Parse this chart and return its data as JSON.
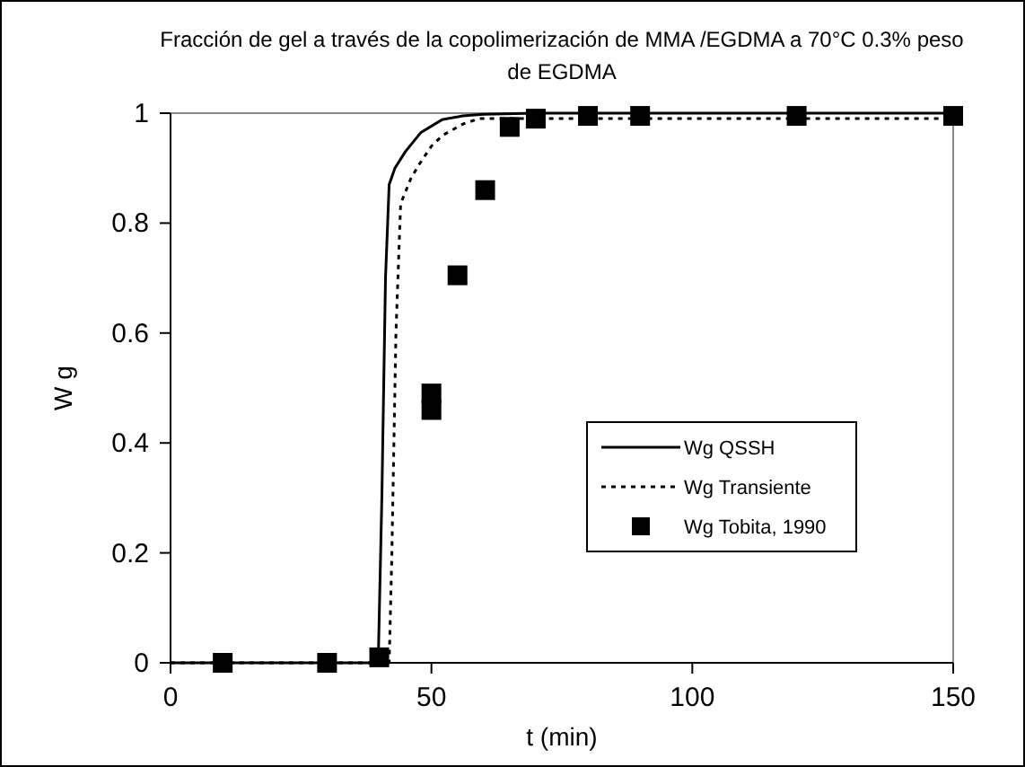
{
  "chart_data": {
    "type": "line",
    "title": "Fracción de gel  a través de la copolimerización de MMA /EGDMA a 70°C 0.3% peso de EGDMA",
    "xlabel": "t (min)",
    "ylabel": "W g",
    "xlim": [
      0,
      150
    ],
    "ylim": [
      0,
      1
    ],
    "xticks": [
      0,
      50,
      100,
      150
    ],
    "yticks": [
      0,
      0.2,
      0.4,
      0.6,
      0.8,
      1
    ],
    "grid": false,
    "legend": "right",
    "series": [
      {
        "name": "Wg QSSH",
        "color": "#000000",
        "line_style": "solid",
        "marker": "none",
        "x": [
          0,
          39.8,
          40.5,
          41.2,
          41.9,
          43,
          45,
          48,
          52,
          56,
          60,
          70,
          150
        ],
        "values": [
          0,
          0,
          0.3,
          0.7,
          0.87,
          0.9,
          0.93,
          0.965,
          0.988,
          0.995,
          0.998,
          1,
          1
        ]
      },
      {
        "name": "Wg Transiente",
        "color": "#000000",
        "line_style": "dotted",
        "marker": "none",
        "x": [
          0,
          41.9,
          42.4,
          43.2,
          44.1,
          46,
          47.6,
          50,
          52.2,
          56,
          59,
          70,
          150
        ],
        "values": [
          0,
          0,
          0.19,
          0.6,
          0.835,
          0.88,
          0.906,
          0.94,
          0.96,
          0.98,
          0.99,
          0.99,
          0.99
        ]
      },
      {
        "name": "Wg Tobita, 1990",
        "color": "#000000",
        "type": "scatter",
        "marker": "square",
        "x": [
          10,
          30,
          40,
          50,
          50,
          55,
          60.3,
          65,
          70,
          80,
          90,
          120,
          150
        ],
        "values": [
          0,
          0,
          0.01,
          0.49,
          0.46,
          0.705,
          0.86,
          0.975,
          0.99,
          0.995,
          0.995,
          0.995,
          0.995
        ]
      }
    ]
  }
}
